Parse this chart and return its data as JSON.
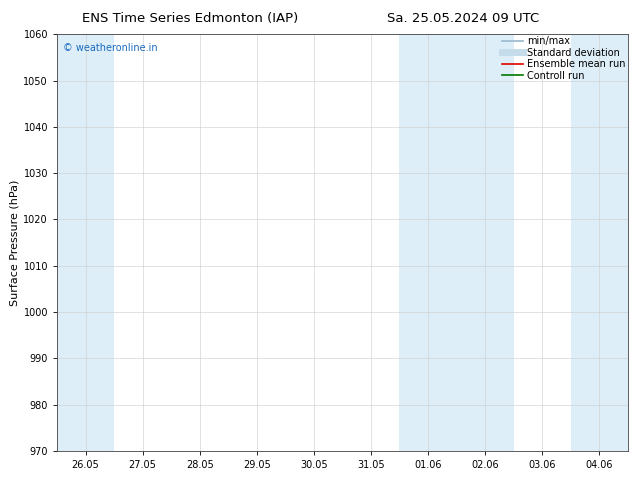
{
  "title_left": "ENS Time Series Edmonton (IAP)",
  "title_right": "Sa. 25.05.2024 09 UTC",
  "ylabel": "Surface Pressure (hPa)",
  "ylim": [
    970,
    1060
  ],
  "yticks": [
    970,
    980,
    990,
    1000,
    1010,
    1020,
    1030,
    1040,
    1050,
    1060
  ],
  "xlabels": [
    "26.05",
    "27.05",
    "28.05",
    "29.05",
    "30.05",
    "31.05",
    "01.06",
    "02.06",
    "03.06",
    "04.06"
  ],
  "x_positions": [
    0,
    1,
    2,
    3,
    4,
    5,
    6,
    7,
    8,
    9
  ],
  "shaded_bands": [
    {
      "xmin": -0.5,
      "xmax": 0.5,
      "color": "#ddeef8"
    },
    {
      "xmin": 5.5,
      "xmax": 7.5,
      "color": "#ddeef8"
    },
    {
      "xmin": 8.5,
      "xmax": 9.5,
      "color": "#ddeef8"
    }
  ],
  "legend_items": [
    {
      "label": "min/max",
      "color": "#9ab8cc",
      "lw": 1.2
    },
    {
      "label": "Standard deviation",
      "color": "#c5dcea",
      "lw": 5
    },
    {
      "label": "Ensemble mean run",
      "color": "#dd0000",
      "lw": 1.2
    },
    {
      "label": "Controll run",
      "color": "#007700",
      "lw": 1.2
    }
  ],
  "watermark": "© weatheronline.in",
  "watermark_color": "#1a6bbf",
  "background_color": "#ffffff",
  "plot_bg_color": "#ffffff",
  "grid_color": "#cccccc",
  "title_fontsize": 9.5,
  "tick_fontsize": 7,
  "ylabel_fontsize": 8,
  "legend_fontsize": 7
}
